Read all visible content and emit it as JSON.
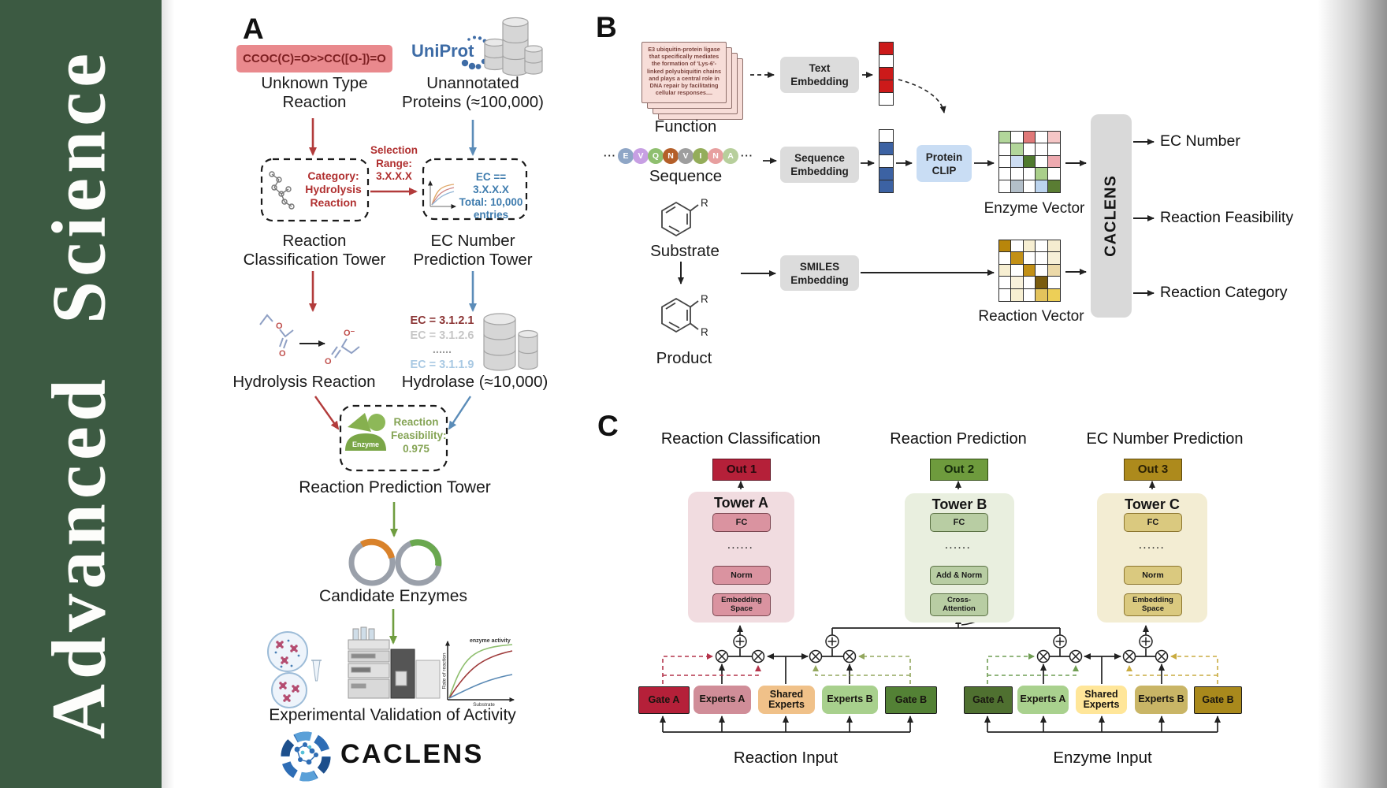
{
  "sidebar": {
    "title": "Advanced Science",
    "bg": "#3c5a42"
  },
  "colors": {
    "accent_red": "#b23b3b",
    "accent_blue": "#5b8cb8",
    "accent_green": "#6f9d3f",
    "tower_a": "#b52039",
    "tower_b": "#6e9b3d",
    "tower_c": "#ad8a1c",
    "bar_gray": "#d9d9d9"
  },
  "panel_a": {
    "label": "A",
    "smiles": "CCOC(C)=O>>CC([O-])=O",
    "unknown_l1": "Unknown Type",
    "unknown_l2": "Reaction",
    "uniprot": "UniProt",
    "unannotated_l1": "Unannotated",
    "unannotated_l2": "Proteins (≈100,000)",
    "selection_l1": "Selection",
    "selection_l2": "Range:",
    "selection_l3": "3.X.X.X",
    "category_l1": "Category:",
    "category_l2": "Hydrolysis",
    "category_l3": "Reaction",
    "ec_l1": "EC == 3.X.X.X",
    "ec_l2": "Total: 10,000",
    "ec_l3": "entries",
    "tower1_l1": "Reaction",
    "tower1_l2": "Classification Tower",
    "tower2_l1": "EC Number",
    "tower2_l2": "Prediction Tower",
    "hydrolysis": "Hydrolysis Reaction",
    "ec_items": [
      "EC = 3.1.2.1",
      "EC = 3.1.2.6",
      "......",
      "EC = 3.1.1.9"
    ],
    "hydrolase": "Hydrolase (≈10,000)",
    "enzyme_badge": "Enzyme",
    "feas_l1": "Reaction",
    "feas_l2": "Feasibility:",
    "feas_l3": "0.975",
    "tower3": "Reaction Prediction Tower",
    "candidates": "Candidate Enzymes",
    "validation": "Experimental Validation of Activity",
    "graph_curve": "enzyme activity",
    "graph_x": "Substrate",
    "graph_y": "Rate of reaction",
    "logo": "CACLENS",
    "o_atom": "O",
    "o_minus": "O⁻"
  },
  "panel_b": {
    "label": "B",
    "function_text": "E3 ubiquitin-protein ligase that specifically mediates the formation of 'Lys-6'-linked polyubiquitin chains and plays a central role in DNA repair by facilitating cellular responses....",
    "function": "Function",
    "ellipsis": "···",
    "residues": [
      {
        "ch": "E",
        "color": "#8fa6c6"
      },
      {
        "ch": "V",
        "color": "#c79fe3"
      },
      {
        "ch": "Q",
        "color": "#8fbf6f"
      },
      {
        "ch": "N",
        "color": "#b45f29"
      },
      {
        "ch": "V",
        "color": "#9e9e9e"
      },
      {
        "ch": "I",
        "color": "#94ad5a"
      },
      {
        "ch": "N",
        "color": "#e79f9f"
      },
      {
        "ch": "A",
        "color": "#b7cf9c"
      }
    ],
    "sequence": "Sequence",
    "substrate": "Substrate",
    "product": "Product",
    "r": "R",
    "text_emb_l1": "Text",
    "text_emb_l2": "Embedding",
    "seq_emb_l1": "Sequence",
    "seq_emb_l2": "Embedding",
    "smiles_emb_l1": "SMILES",
    "smiles_emb_l2": "Embedding",
    "clip_l1": "Protein",
    "clip_l2": "CLIP",
    "text_vector": [
      "#cc1a1a",
      "#ffffff",
      "#cc1a1a",
      "#cc1a1a",
      "#ffffff"
    ],
    "seq_vector": [
      "#ffffff",
      "#3c62a3",
      "#ffffff",
      "#3c62a3",
      "#3c62a3"
    ],
    "enzyme_grid": [
      [
        "#b2d69a",
        "#ffffff",
        "#e07878",
        "#ffffff",
        "#f5c6c6"
      ],
      [
        "#ffffff",
        "#b2d69a",
        "#ffffff",
        "#ffffff",
        "#ffffff"
      ],
      [
        "#ffffff",
        "#cdddf2",
        "#4f7a2e",
        "#ffffff",
        "#eeaab0"
      ],
      [
        "#ffffff",
        "#ffffff",
        "#ffffff",
        "#a9cf8a",
        "#ffffff"
      ],
      [
        "#ffffff",
        "#b3bfc9",
        "#ffffff",
        "#bcd4ee",
        "#5a7d33"
      ]
    ],
    "reaction_grid": [
      [
        "#b8860b",
        "#ffffff",
        "#f7efd2",
        "#ffffff",
        "#f5ecd0"
      ],
      [
        "#ffffff",
        "#c29016",
        "#ffffff",
        "#ffffff",
        "#f7f0d8"
      ],
      [
        "#f7efd2",
        "#ffffff",
        "#c29016",
        "#ffffff",
        "#ecd9a8"
      ],
      [
        "#ffffff",
        "#f9f2dc",
        "#ffffff",
        "#7a5c0e",
        "#ffffff"
      ],
      [
        "#ffffff",
        "#f7efd2",
        "#ffffff",
        "#e3c35c",
        "#edcf57"
      ]
    ],
    "enzyme_vector_label": "Enzyme Vector",
    "reaction_vector_label": "Reaction Vector",
    "caclens": "CACLENS",
    "outputs": [
      "EC Number",
      "Reaction Feasibility",
      "Reaction Category"
    ]
  },
  "panel_c": {
    "label": "C",
    "titles": [
      "Reaction Classification",
      "Reaction Prediction",
      "EC Number Prediction"
    ],
    "outs": [
      "Out 1",
      "Out 2",
      "Out 3"
    ],
    "towers": [
      "Tower A",
      "Tower B",
      "Tower C"
    ],
    "fc": "FC",
    "dots": "......",
    "norm": "Norm",
    "emb_l1": "Embedding",
    "emb_l2": "Space",
    "addnorm": "Add & Norm",
    "crossattn_l1": "Cross-",
    "crossattn_l2": "Attention",
    "gate_a": "Gate A",
    "experts_a": "Experts A",
    "shared_l1": "Shared",
    "shared_l2": "Experts",
    "experts_b": "Experts B",
    "gate_b": "Gate B",
    "reaction_input": "Reaction Input",
    "enzyme_input": "Enzyme Input"
  }
}
